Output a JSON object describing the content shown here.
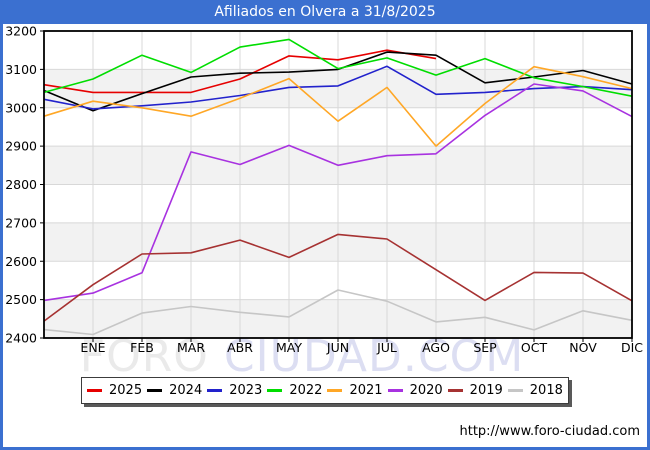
{
  "title_bar": {
    "text": "Afiliados en Olvera a 31/8/2025",
    "bg_color": "#3b70d0",
    "text_color": "#ffffff"
  },
  "footer": {
    "url": "http://www.foro-ciudad.com"
  },
  "watermark": {
    "part_gray": "FORO",
    "part_blue": " CIUDAD.COM",
    "color_gray": "#eaeaea",
    "color_blue": "#dcdef2"
  },
  "chart_data": {
    "type": "line",
    "title": "Afiliados en Olvera a 31/8/2025",
    "xlabel": "",
    "ylabel": "",
    "ylim": [
      2400,
      3200
    ],
    "ytick_interval": 100,
    "yticks": [
      2400,
      2500,
      2600,
      2700,
      2800,
      2900,
      3000,
      3100,
      3200
    ],
    "grid": true,
    "gray_bands": [
      [
        2400,
        2500
      ],
      [
        2600,
        2700
      ],
      [
        2800,
        2900
      ],
      [
        3000,
        3100
      ]
    ],
    "legend_position": "bottom",
    "categories": [
      "",
      "ENE",
      "FEB",
      "MAR",
      "ABR",
      "MAY",
      "JUN",
      "JUL",
      "AGO",
      "SEP",
      "OCT",
      "NOV",
      "DIC"
    ],
    "series": [
      {
        "name": "2025",
        "color": "#e60000",
        "values": [
          3060,
          3040,
          3040,
          3040,
          3075,
          3135,
          3125,
          3150,
          3128,
          null,
          null,
          null,
          null
        ]
      },
      {
        "name": "2024",
        "color": "#000000",
        "values": [
          3045,
          2992,
          3037,
          3080,
          3090,
          3093,
          3100,
          3145,
          3137,
          3065,
          3080,
          3097,
          3062
        ]
      },
      {
        "name": "2023",
        "color": "#2222cc",
        "values": [
          3022,
          2997,
          3005,
          3015,
          3032,
          3053,
          3057,
          3108,
          3035,
          3040,
          3050,
          3055,
          3047
        ]
      },
      {
        "name": "2022",
        "color": "#00dd00",
        "values": [
          3040,
          3075,
          3137,
          3092,
          3158,
          3178,
          3102,
          3130,
          3085,
          3128,
          3078,
          3055,
          3030
        ]
      },
      {
        "name": "2021",
        "color": "#ffa726",
        "values": [
          2978,
          3017,
          3000,
          2978,
          3025,
          3076,
          2965,
          3053,
          2900,
          3011,
          3107,
          3081,
          3050
        ]
      },
      {
        "name": "2020",
        "color": "#a832e0",
        "values": [
          2498,
          2517,
          2570,
          2885,
          2852,
          2902,
          2850,
          2875,
          2880,
          2980,
          3062,
          3044,
          2977
        ]
      },
      {
        "name": "2019",
        "color": "#a63232",
        "values": [
          2444,
          2539,
          2619,
          2622,
          2655,
          2610,
          2670,
          2658,
          2578,
          2498,
          2571,
          2569,
          2497
        ]
      },
      {
        "name": "2018",
        "color": "#c6c6c6",
        "values": [
          2422,
          2409,
          2465,
          2482,
          2467,
          2455,
          2525,
          2496,
          2442,
          2454,
          2421,
          2471,
          2446
        ]
      }
    ]
  }
}
